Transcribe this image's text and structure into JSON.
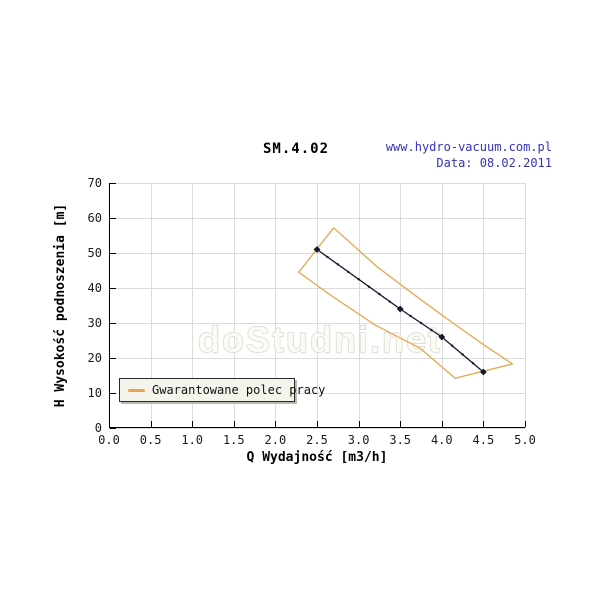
{
  "header": {
    "website": "www.hydro-vacuum.com.pl",
    "date_label": "Data: 08.02.2011"
  },
  "watermark": "doStudni.net",
  "colors": {
    "envelope_orange": "#e0a84f",
    "curve_dark": "#15152e",
    "grid_gray": "#dcdcdc",
    "axis_black": "#000000",
    "header_blue": "#3434b4",
    "legend_background": "#f4f4ec"
  },
  "chart_data": {
    "type": "line",
    "title": "SM.4.02",
    "xlabel": "Q Wydajność [m3/h]",
    "ylabel": "H Wysokość podnoszenia [m]",
    "xlim": [
      0.0,
      5.0
    ],
    "ylim": [
      0,
      70
    ],
    "grid": true,
    "legend_position": "bottom-left-inside",
    "xticks": {
      "values": [
        0.0,
        0.5,
        1.0,
        1.5,
        2.0,
        2.5,
        3.0,
        3.5,
        4.0,
        4.5,
        5.0
      ],
      "labels": [
        "0.0",
        "0.5",
        "1.0",
        "1.5",
        "2.0",
        "2.5",
        "3.0",
        "3.5",
        "4.0",
        "4.5",
        "5.0"
      ]
    },
    "yticks": {
      "values": [
        0,
        10,
        20,
        30,
        40,
        50,
        60,
        70
      ],
      "labels": [
        "0",
        "10",
        "20",
        "30",
        "40",
        "50",
        "60",
        "70"
      ]
    },
    "curve": {
      "color": "#15152e",
      "marker": "diamond",
      "points": [
        [
          2.5,
          51
        ],
        [
          3.5,
          34
        ],
        [
          4.0,
          26
        ],
        [
          4.5,
          16
        ]
      ]
    },
    "envelope": {
      "legend_label": "Gwarantowane polec pracy",
      "color": "#e0a84f",
      "closed": true,
      "outline_points": [
        [
          2.28,
          44.5
        ],
        [
          2.7,
          57.2
        ],
        [
          3.22,
          46.1
        ],
        [
          3.74,
          36.8
        ],
        [
          4.14,
          29.9
        ],
        [
          4.54,
          23.2
        ],
        [
          4.85,
          18.3
        ],
        [
          4.16,
          14.2
        ],
        [
          3.74,
          22.8
        ],
        [
          3.2,
          29.4
        ],
        [
          2.66,
          38.0
        ]
      ]
    }
  }
}
